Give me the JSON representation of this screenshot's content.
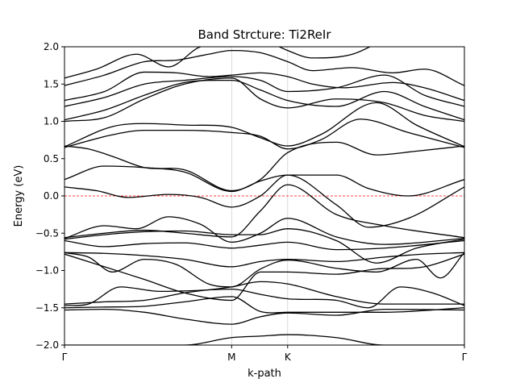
{
  "chart_data": {
    "type": "line",
    "title": "Band Strcture: Ti2ReIr",
    "xlabel": "k-path",
    "ylabel": "Energy (eV)",
    "ylim": [
      -2.0,
      2.0
    ],
    "xlim": [
      0,
      1
    ],
    "yticks": [
      {
        "v": -2.0,
        "label": "−2.0"
      },
      {
        "v": -1.5,
        "label": "−1.5"
      },
      {
        "v": -1.0,
        "label": "−1.0"
      },
      {
        "v": -0.5,
        "label": "−0.5"
      },
      {
        "v": 0.0,
        "label": "0.0"
      },
      {
        "v": 0.5,
        "label": "0.5"
      },
      {
        "v": 1.0,
        "label": "1.0"
      },
      {
        "v": 1.5,
        "label": "1.5"
      },
      {
        "v": 2.0,
        "label": "2.0"
      }
    ],
    "kpoints": [
      {
        "x": 0.0,
        "label": "Γ"
      },
      {
        "x": 0.418,
        "label": "M"
      },
      {
        "x": 0.558,
        "label": "K"
      },
      {
        "x": 1.0,
        "label": "Γ"
      }
    ],
    "fermi_level": 0.0,
    "fermi_color": "#ff0000",
    "line_color": "#000000",
    "grid": "vertical lines at high-symmetry points",
    "bands": [
      [
        [
          0.0,
          -2.0
        ],
        [
          0.1,
          -2.0
        ],
        [
          0.2,
          -2.0
        ],
        [
          0.3,
          -2.0
        ],
        [
          0.418,
          -1.9
        ],
        [
          0.49,
          -1.88
        ],
        [
          0.558,
          -1.86
        ],
        [
          0.68,
          -1.9
        ],
        [
          0.8,
          -2.0
        ],
        [
          1.0,
          -2.0
        ]
      ],
      [
        [
          0.0,
          -1.53
        ],
        [
          0.1,
          -1.52
        ],
        [
          0.2,
          -1.56
        ],
        [
          0.3,
          -1.65
        ],
        [
          0.418,
          -1.72
        ],
        [
          0.49,
          -1.62
        ],
        [
          0.558,
          -1.57
        ],
        [
          0.68,
          -1.6
        ],
        [
          0.8,
          -1.52
        ],
        [
          1.0,
          -1.53
        ]
      ],
      [
        [
          0.0,
          -1.5
        ],
        [
          0.1,
          -1.49
        ],
        [
          0.2,
          -1.48
        ],
        [
          0.3,
          -1.42
        ],
        [
          0.418,
          -1.35
        ],
        [
          0.49,
          -1.55
        ],
        [
          0.558,
          -1.56
        ],
        [
          0.68,
          -1.56
        ],
        [
          0.8,
          -1.56
        ],
        [
          1.0,
          -1.5
        ]
      ],
      [
        [
          0.0,
          -1.47
        ],
        [
          0.06,
          -1.45
        ],
        [
          0.14,
          -1.22
        ],
        [
          0.24,
          -1.28
        ],
        [
          0.32,
          -1.27
        ],
        [
          0.418,
          -1.25
        ],
        [
          0.49,
          -1.32
        ],
        [
          0.558,
          -1.38
        ],
        [
          0.68,
          -1.4
        ],
        [
          0.76,
          -1.5
        ],
        [
          0.84,
          -1.22
        ],
        [
          0.92,
          -1.3
        ],
        [
          1.0,
          -1.47
        ]
      ],
      [
        [
          0.0,
          -1.45
        ],
        [
          0.1,
          -1.42
        ],
        [
          0.2,
          -1.4
        ],
        [
          0.3,
          -1.3
        ],
        [
          0.418,
          -1.22
        ],
        [
          0.49,
          -1.15
        ],
        [
          0.558,
          -1.18
        ],
        [
          0.68,
          -1.35
        ],
        [
          0.8,
          -1.45
        ],
        [
          1.0,
          -1.45
        ]
      ],
      [
        [
          0.0,
          -0.78
        ],
        [
          0.1,
          -0.95
        ],
        [
          0.2,
          -1.12
        ],
        [
          0.3,
          -1.3
        ],
        [
          0.418,
          -1.4
        ],
        [
          0.49,
          -1.02
        ],
        [
          0.558,
          -1.02
        ],
        [
          0.68,
          -1.05
        ],
        [
          0.78,
          -0.98
        ],
        [
          0.9,
          -0.95
        ],
        [
          1.0,
          -0.78
        ]
      ],
      [
        [
          0.0,
          -0.76
        ],
        [
          0.06,
          -0.82
        ],
        [
          0.12,
          -1.02
        ],
        [
          0.2,
          -0.85
        ],
        [
          0.28,
          -0.92
        ],
        [
          0.36,
          -1.18
        ],
        [
          0.418,
          -1.22
        ],
        [
          0.49,
          -0.98
        ],
        [
          0.558,
          -0.86
        ],
        [
          0.68,
          -0.97
        ],
        [
          0.78,
          -1.02
        ],
        [
          0.88,
          -0.85
        ],
        [
          0.94,
          -1.1
        ],
        [
          1.0,
          -0.76
        ]
      ],
      [
        [
          0.0,
          -0.76
        ],
        [
          0.1,
          -0.77
        ],
        [
          0.2,
          -0.8
        ],
        [
          0.3,
          -0.85
        ],
        [
          0.418,
          -0.95
        ],
        [
          0.49,
          -0.88
        ],
        [
          0.558,
          -0.85
        ],
        [
          0.68,
          -0.88
        ],
        [
          0.8,
          -0.82
        ],
        [
          0.9,
          -0.78
        ],
        [
          1.0,
          -0.76
        ]
      ],
      [
        [
          0.0,
          -0.6
        ],
        [
          0.1,
          -0.68
        ],
        [
          0.2,
          -0.64
        ],
        [
          0.3,
          -0.63
        ],
        [
          0.418,
          -0.7
        ],
        [
          0.49,
          -0.66
        ],
        [
          0.558,
          -0.62
        ],
        [
          0.68,
          -0.72
        ],
        [
          0.8,
          -0.7
        ],
        [
          1.0,
          -0.6
        ]
      ],
      [
        [
          0.0,
          -0.58
        ],
        [
          0.1,
          -0.52
        ],
        [
          0.2,
          -0.48
        ],
        [
          0.3,
          -0.47
        ],
        [
          0.418,
          -0.52
        ],
        [
          0.49,
          -0.52
        ],
        [
          0.558,
          -0.44
        ],
        [
          0.68,
          -0.6
        ],
        [
          0.78,
          -0.9
        ],
        [
          0.88,
          -0.7
        ],
        [
          1.0,
          -0.58
        ]
      ],
      [
        [
          0.0,
          -0.57
        ],
        [
          0.1,
          -0.4
        ],
        [
          0.18,
          -0.44
        ],
        [
          0.26,
          -0.28
        ],
        [
          0.34,
          -0.38
        ],
        [
          0.418,
          -0.62
        ],
        [
          0.49,
          -0.5
        ],
        [
          0.558,
          -0.3
        ],
        [
          0.68,
          -0.55
        ],
        [
          0.8,
          -0.65
        ],
        [
          1.0,
          -0.57
        ]
      ],
      [
        [
          0.0,
          -0.56
        ],
        [
          0.1,
          -0.5
        ],
        [
          0.2,
          -0.46
        ],
        [
          0.3,
          -0.5
        ],
        [
          0.418,
          -0.55
        ],
        [
          0.49,
          -0.2
        ],
        [
          0.558,
          0.15
        ],
        [
          0.68,
          -0.25
        ],
        [
          0.8,
          -0.4
        ],
        [
          1.0,
          -0.56
        ]
      ],
      [
        [
          0.0,
          0.12
        ],
        [
          0.08,
          0.07
        ],
        [
          0.16,
          -0.02
        ],
        [
          0.26,
          0.02
        ],
        [
          0.34,
          -0.02
        ],
        [
          0.418,
          -0.15
        ],
        [
          0.49,
          0.0
        ],
        [
          0.558,
          0.28
        ],
        [
          0.68,
          -0.12
        ],
        [
          0.76,
          -0.42
        ],
        [
          0.86,
          -0.3
        ],
        [
          1.0,
          0.12
        ]
      ],
      [
        [
          0.0,
          0.22
        ],
        [
          0.1,
          0.4
        ],
        [
          0.2,
          0.38
        ],
        [
          0.3,
          0.32
        ],
        [
          0.418,
          0.06
        ],
        [
          0.49,
          0.2
        ],
        [
          0.558,
          0.28
        ],
        [
          0.68,
          0.28
        ],
        [
          0.76,
          0.1
        ],
        [
          0.86,
          0.0
        ],
        [
          1.0,
          0.22
        ]
      ],
      [
        [
          0.0,
          0.67
        ],
        [
          0.06,
          0.63
        ],
        [
          0.12,
          0.53
        ],
        [
          0.2,
          0.38
        ],
        [
          0.3,
          0.35
        ],
        [
          0.418,
          0.07
        ],
        [
          0.49,
          0.22
        ],
        [
          0.558,
          0.58
        ],
        [
          0.68,
          0.72
        ],
        [
          0.78,
          0.55
        ],
        [
          0.88,
          0.6
        ],
        [
          1.0,
          0.67
        ]
      ],
      [
        [
          0.0,
          0.65
        ],
        [
          0.12,
          0.82
        ],
        [
          0.2,
          0.88
        ],
        [
          0.3,
          0.88
        ],
        [
          0.418,
          0.85
        ],
        [
          0.49,
          0.8
        ],
        [
          0.558,
          0.63
        ],
        [
          0.64,
          0.75
        ],
        [
          0.74,
          1.03
        ],
        [
          0.86,
          0.85
        ],
        [
          1.0,
          0.65
        ]
      ],
      [
        [
          0.0,
          0.66
        ],
        [
          0.12,
          0.93
        ],
        [
          0.2,
          0.97
        ],
        [
          0.3,
          0.95
        ],
        [
          0.418,
          0.92
        ],
        [
          0.49,
          0.78
        ],
        [
          0.558,
          0.67
        ],
        [
          0.64,
          0.82
        ],
        [
          0.78,
          1.25
        ],
        [
          0.88,
          0.95
        ],
        [
          1.0,
          0.66
        ]
      ],
      [
        [
          0.0,
          1.0
        ],
        [
          0.1,
          1.05
        ],
        [
          0.2,
          1.3
        ],
        [
          0.3,
          1.5
        ],
        [
          0.418,
          1.58
        ],
        [
          0.49,
          1.3
        ],
        [
          0.558,
          1.18
        ],
        [
          0.68,
          1.3
        ],
        [
          0.8,
          1.25
        ],
        [
          0.9,
          1.08
        ],
        [
          1.0,
          1.0
        ]
      ],
      [
        [
          0.0,
          1.02
        ],
        [
          0.1,
          1.15
        ],
        [
          0.2,
          1.35
        ],
        [
          0.3,
          1.52
        ],
        [
          0.418,
          1.55
        ],
        [
          0.49,
          1.42
        ],
        [
          0.558,
          1.28
        ],
        [
          0.68,
          1.2
        ],
        [
          0.8,
          1.4
        ],
        [
          0.9,
          1.2
        ],
        [
          1.0,
          1.02
        ]
      ],
      [
        [
          0.0,
          1.2
        ],
        [
          0.1,
          1.32
        ],
        [
          0.2,
          1.5
        ],
        [
          0.3,
          1.55
        ],
        [
          0.418,
          1.6
        ],
        [
          0.49,
          1.55
        ],
        [
          0.558,
          1.4
        ],
        [
          0.68,
          1.45
        ],
        [
          0.8,
          1.62
        ],
        [
          0.9,
          1.35
        ],
        [
          1.0,
          1.2
        ]
      ],
      [
        [
          0.0,
          1.28
        ],
        [
          0.1,
          1.4
        ],
        [
          0.2,
          1.66
        ],
        [
          0.28,
          1.65
        ],
        [
          0.36,
          1.6
        ],
        [
          0.418,
          1.62
        ],
        [
          0.49,
          1.65
        ],
        [
          0.558,
          1.6
        ],
        [
          0.62,
          1.5
        ],
        [
          0.7,
          1.45
        ],
        [
          0.82,
          1.52
        ],
        [
          0.9,
          1.45
        ],
        [
          1.0,
          1.28
        ]
      ],
      [
        [
          0.0,
          1.48
        ],
        [
          0.1,
          1.62
        ],
        [
          0.2,
          1.8
        ],
        [
          0.28,
          1.82
        ],
        [
          0.36,
          1.9
        ],
        [
          0.418,
          1.95
        ],
        [
          0.49,
          1.92
        ],
        [
          0.558,
          1.8
        ],
        [
          0.62,
          1.68
        ],
        [
          0.72,
          1.72
        ],
        [
          0.82,
          1.65
        ],
        [
          0.9,
          1.7
        ],
        [
          1.0,
          1.48
        ]
      ],
      [
        [
          0.0,
          1.58
        ],
        [
          0.08,
          1.7
        ],
        [
          0.18,
          1.9
        ],
        [
          0.26,
          1.73
        ],
        [
          0.34,
          2.0
        ],
        [
          0.418,
          2.02
        ],
        [
          0.46,
          2.1
        ]
      ],
      [
        [
          0.5,
          2.1
        ],
        [
          0.558,
          1.95
        ],
        [
          0.62,
          1.85
        ],
        [
          0.72,
          1.9
        ],
        [
          0.8,
          2.1
        ]
      ]
    ]
  }
}
